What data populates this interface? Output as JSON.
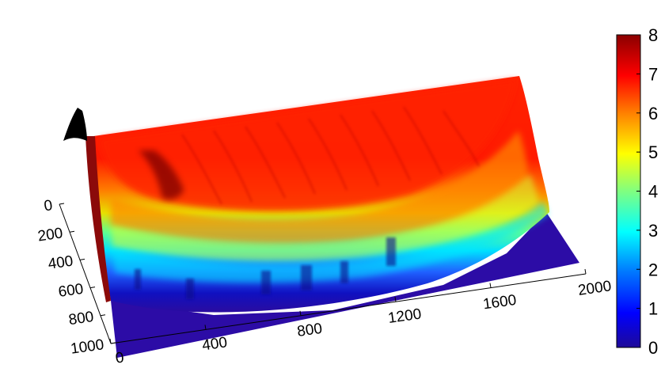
{
  "chart_data": {
    "type": "surface",
    "title": "",
    "xlabel": "",
    "ylabel": "",
    "zlabel": "",
    "x_ticks": [
      "0",
      "400",
      "800",
      "1200",
      "1600",
      "2000"
    ],
    "y_ticks": [
      "0",
      "200",
      "400",
      "600",
      "800",
      "1000"
    ],
    "xlim": [
      0,
      2000
    ],
    "ylim": [
      0,
      1000
    ],
    "colorbar": {
      "ticks": [
        "0",
        "1",
        "2",
        "3",
        "4",
        "5",
        "6",
        "7",
        "8"
      ],
      "range": [
        0,
        8
      ],
      "colormap": "jet",
      "colors": [
        "#000090",
        "#0000ff",
        "#0080ff",
        "#00ffff",
        "#80ff80",
        "#ffff00",
        "#ff8000",
        "#ff0000",
        "#800000"
      ]
    },
    "surface_profile": {
      "description_values_by_depth": [
        {
          "y": 0,
          "z": 7.2
        },
        {
          "y": 200,
          "z": 7.0
        },
        {
          "y": 400,
          "z": 5.5
        },
        {
          "y": 600,
          "z": 3.5
        },
        {
          "y": 800,
          "z": 1.5
        },
        {
          "y": 1000,
          "z": 0.3
        }
      ]
    },
    "grid": false,
    "legend": "colorbar-right"
  }
}
